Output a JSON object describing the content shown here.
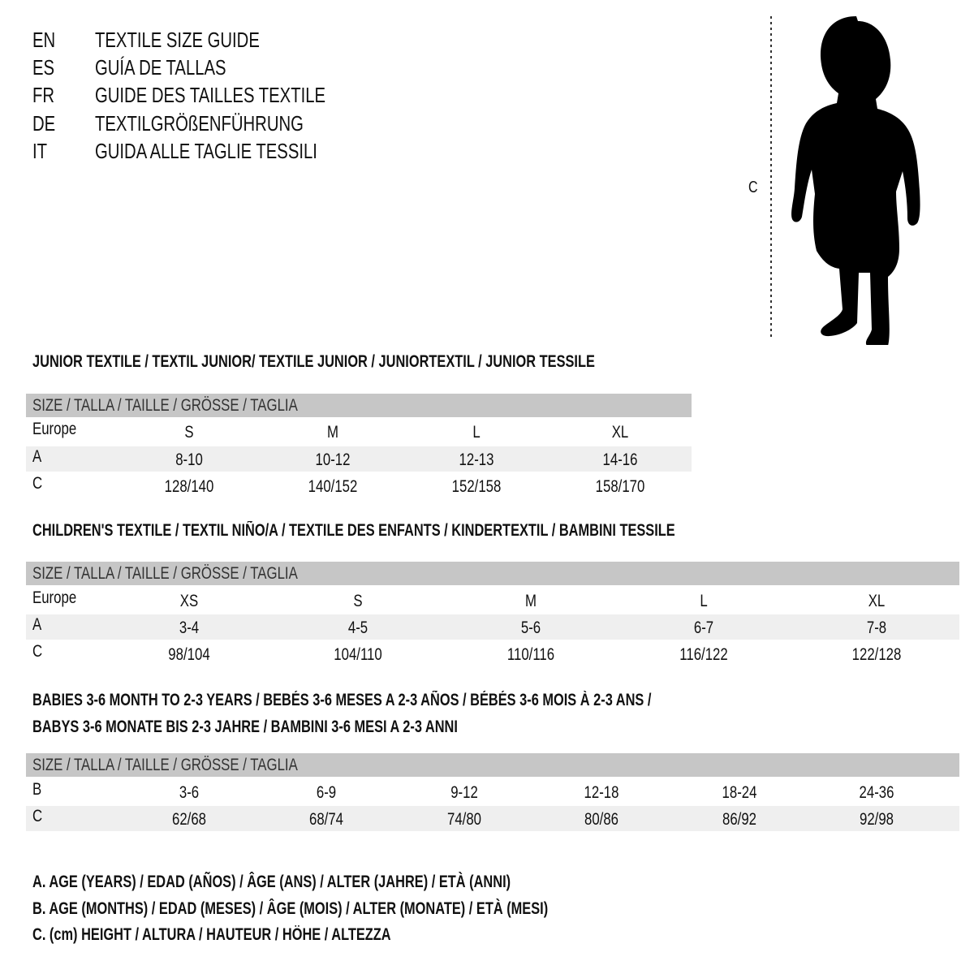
{
  "titles": [
    {
      "code": "EN",
      "text": "TEXTILE SIZE GUIDE"
    },
    {
      "code": "ES",
      "text": "GUÍA DE TALLAS"
    },
    {
      "code": "FR",
      "text": "GUIDE DES TAILLES TEXTILE"
    },
    {
      "code": "DE",
      "text": "TEXTILGRÖßENFÜHRUNG"
    },
    {
      "code": "IT",
      "text": "GUIDA ALLE TAGLIE TESSILI"
    }
  ],
  "figure": {
    "measure_label": "C",
    "icon": "child-silhouette"
  },
  "tables": [
    {
      "heading": "JUNIOR TEXTILE / TEXTIL JUNIOR/ TEXTILE JUNIOR / JUNIORTEXTIL / JUNIOR TESSILE",
      "header": "SIZE / TALLA / TAILLE / GRÖSSE / TAGLIA",
      "rows": [
        {
          "label": "Europe",
          "values": [
            "S",
            "M",
            "L",
            "XL"
          ]
        },
        {
          "label": "A",
          "values": [
            "8-10",
            "10-12",
            "12-13",
            "14-16"
          ]
        },
        {
          "label": "C",
          "values": [
            "128/140",
            "140/152",
            "152/158",
            "158/170"
          ]
        }
      ]
    },
    {
      "heading": "CHILDREN'S TEXTILE / TEXTIL NIÑO/A / TEXTILE DES ENFANTS / KINDERTEXTIL / BAMBINI TESSILE",
      "header": "SIZE / TALLA / TAILLE / GRÖSSE / TAGLIA",
      "rows": [
        {
          "label": "Europe",
          "values": [
            "XS",
            "S",
            "M",
            "L",
            "XL"
          ]
        },
        {
          "label": "A",
          "values": [
            "3-4",
            "4-5",
            "5-6",
            "6-7",
            "7-8"
          ]
        },
        {
          "label": "C",
          "values": [
            "98/104",
            "104/110",
            "110/116",
            "116/122",
            "122/128"
          ]
        }
      ]
    },
    {
      "heading": "BABIES 3-6 MONTH TO 2-3 YEARS / BEBÉS 3-6 MESES A 2-3 AÑOS / BÉBÉS 3-6 MOIS À 2-3 ANS /",
      "heading2": "BABYS 3-6 MONATE BIS 2-3 JAHRE / BAMBINI 3-6 MESI A 2-3 ANNI",
      "header": "SIZE / TALLA / TAILLE / GRÖSSE / TAGLIA",
      "rows": [
        {
          "label": "B",
          "values": [
            "3-6",
            "6-9",
            "9-12",
            "12-18",
            "18-24",
            "24-36"
          ]
        },
        {
          "label": "C",
          "values": [
            "62/68",
            "68/74",
            "74/80",
            "80/86",
            "86/92",
            "92/98"
          ]
        }
      ]
    }
  ],
  "legend": [
    "A. AGE (YEARS) / EDAD (AÑOS) / ÂGE (ANS) / ALTER (JAHRE) / ETÀ (ANNI)",
    "B. AGE (MONTHS) / EDAD (MESES) / ÂGE (MOIS) / ALTER (MONATE) / ETÀ (MESI)",
    "C. (cm) HEIGHT / ALTURA / HAUTEUR / HÖHE / ALTEZZA"
  ],
  "colors": {
    "header_bar": "#c6c6c6",
    "row_band": "#efefef"
  }
}
